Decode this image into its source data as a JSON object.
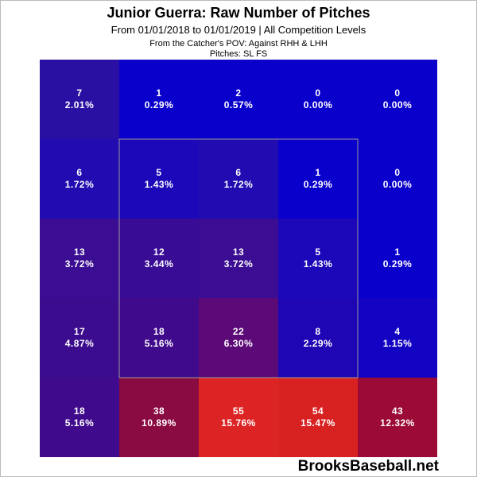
{
  "chart_data": {
    "type": "heatmap",
    "title": "Junior Guerra: Raw Number of Pitches",
    "subtitle": "From 01/01/2018 to 01/01/2019 | All Competition Levels",
    "subtitle2": "From the Catcher's POV:  Against RHH & LHH",
    "subtitle3": "Pitches:  SL  FS",
    "watermark": "BrooksBaseball.net",
    "values": [
      [
        7,
        1,
        2,
        0,
        0
      ],
      [
        6,
        5,
        6,
        1,
        0
      ],
      [
        13,
        12,
        13,
        5,
        1
      ],
      [
        17,
        18,
        22,
        8,
        4
      ],
      [
        18,
        38,
        55,
        54,
        43
      ]
    ],
    "percents": [
      [
        2.01,
        0.29,
        0.57,
        0.0,
        0.0
      ],
      [
        1.72,
        1.43,
        1.72,
        0.29,
        0.0
      ],
      [
        3.72,
        3.44,
        3.72,
        1.43,
        0.29
      ],
      [
        4.87,
        5.16,
        6.3,
        2.29,
        1.15
      ],
      [
        5.16,
        10.89,
        15.76,
        15.47,
        12.32
      ]
    ],
    "percent_labels": [
      [
        "2.01%",
        "0.29%",
        "0.57%",
        "0.00%",
        "0.00%"
      ],
      [
        "1.72%",
        "1.43%",
        "1.72%",
        "0.29%",
        "0.00%"
      ],
      [
        "3.72%",
        "3.44%",
        "3.72%",
        "1.43%",
        "0.29%"
      ],
      [
        "4.87%",
        "5.16%",
        "6.30%",
        "2.29%",
        "1.15%"
      ],
      [
        "5.16%",
        "10.89%",
        "15.76%",
        "15.47%",
        "12.32%"
      ]
    ],
    "colors": [
      [
        "#2a10a2",
        "#0a00cc",
        "#0a00cc",
        "#0a00cc",
        "#0a00cc"
      ],
      [
        "#200cb0",
        "#1c08b8",
        "#200cb0",
        "#0a00cc",
        "#0a00cc"
      ],
      [
        "#3a0d92",
        "#380c95",
        "#3a0d92",
        "#1c08b8",
        "#0a00cc"
      ],
      [
        "#3c0c8e",
        "#400a8c",
        "#5c0a78",
        "#1e06b4",
        "#1204c2"
      ],
      [
        "#400a8c",
        "#8a0a42",
        "#dd2424",
        "#d82222",
        "#9c0a36"
      ]
    ]
  }
}
